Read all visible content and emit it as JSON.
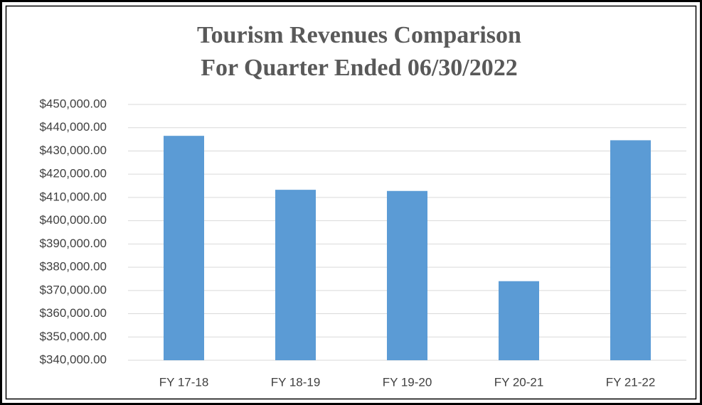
{
  "chart_data": {
    "type": "bar",
    "title": "Tourism Revenues Comparison",
    "subtitle": "For Quarter Ended 06/30/2022",
    "categories": [
      "FY 17-18",
      "FY 18-19",
      "FY 19-20",
      "FY 20-21",
      "FY 21-22"
    ],
    "values": [
      436500,
      413300,
      412800,
      374000,
      434600
    ],
    "color": "#5b9bd5",
    "ylim": [
      340000,
      450000
    ],
    "yticks": [
      {
        "value": 340000,
        "label": "$340,000.00"
      },
      {
        "value": 350000,
        "label": "$350,000.00"
      },
      {
        "value": 360000,
        "label": "$360,000.00"
      },
      {
        "value": 370000,
        "label": "$370,000.00"
      },
      {
        "value": 380000,
        "label": "$380,000.00"
      },
      {
        "value": 390000,
        "label": "$390,000.00"
      },
      {
        "value": 400000,
        "label": "$400,000.00"
      },
      {
        "value": 410000,
        "label": "$410,000.00"
      },
      {
        "value": 420000,
        "label": "$420,000.00"
      },
      {
        "value": 430000,
        "label": "$430,000.00"
      },
      {
        "value": 440000,
        "label": "$440,000.00"
      },
      {
        "value": 450000,
        "label": "$450,000.00"
      }
    ],
    "grid": true
  }
}
